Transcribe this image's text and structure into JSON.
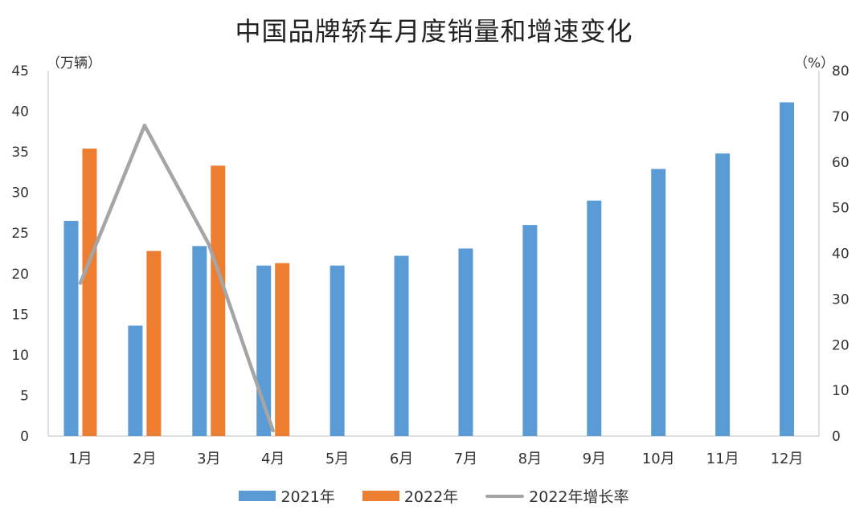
{
  "chart_data": {
    "type": "bar",
    "title": "中国品牌轿车月度销量和增速变化",
    "left_unit": "（万辆）",
    "right_unit": "（%）",
    "categories": [
      "1月",
      "2月",
      "3月",
      "4月",
      "5月",
      "6月",
      "7月",
      "8月",
      "9月",
      "10月",
      "11月",
      "12月"
    ],
    "series": [
      {
        "name": "2021年",
        "type": "bar",
        "axis": "left",
        "color": "#5B9BD5",
        "values": [
          26.5,
          13.6,
          23.4,
          21.0,
          21.0,
          22.2,
          23.1,
          26.0,
          29.0,
          32.9,
          34.8,
          41.1
        ]
      },
      {
        "name": "2022年",
        "type": "bar",
        "axis": "left",
        "color": "#ED7D31",
        "values": [
          35.4,
          22.8,
          33.3,
          21.3,
          null,
          null,
          null,
          null,
          null,
          null,
          null,
          null
        ]
      },
      {
        "name": "2022年增长率",
        "type": "line",
        "axis": "right",
        "color": "#A5A5A5",
        "values": [
          33.5,
          68,
          42,
          1.2,
          null,
          null,
          null,
          null,
          null,
          null,
          null,
          null
        ]
      }
    ],
    "y_left": {
      "min": 0,
      "max": 45,
      "ticks": [
        0,
        5,
        10,
        15,
        20,
        25,
        30,
        35,
        40,
        45
      ]
    },
    "y_right": {
      "min": 0,
      "max": 80,
      "ticks": [
        0,
        10,
        20,
        30,
        40,
        50,
        60,
        70,
        80
      ]
    },
    "grid": false,
    "legend_position": "bottom"
  }
}
